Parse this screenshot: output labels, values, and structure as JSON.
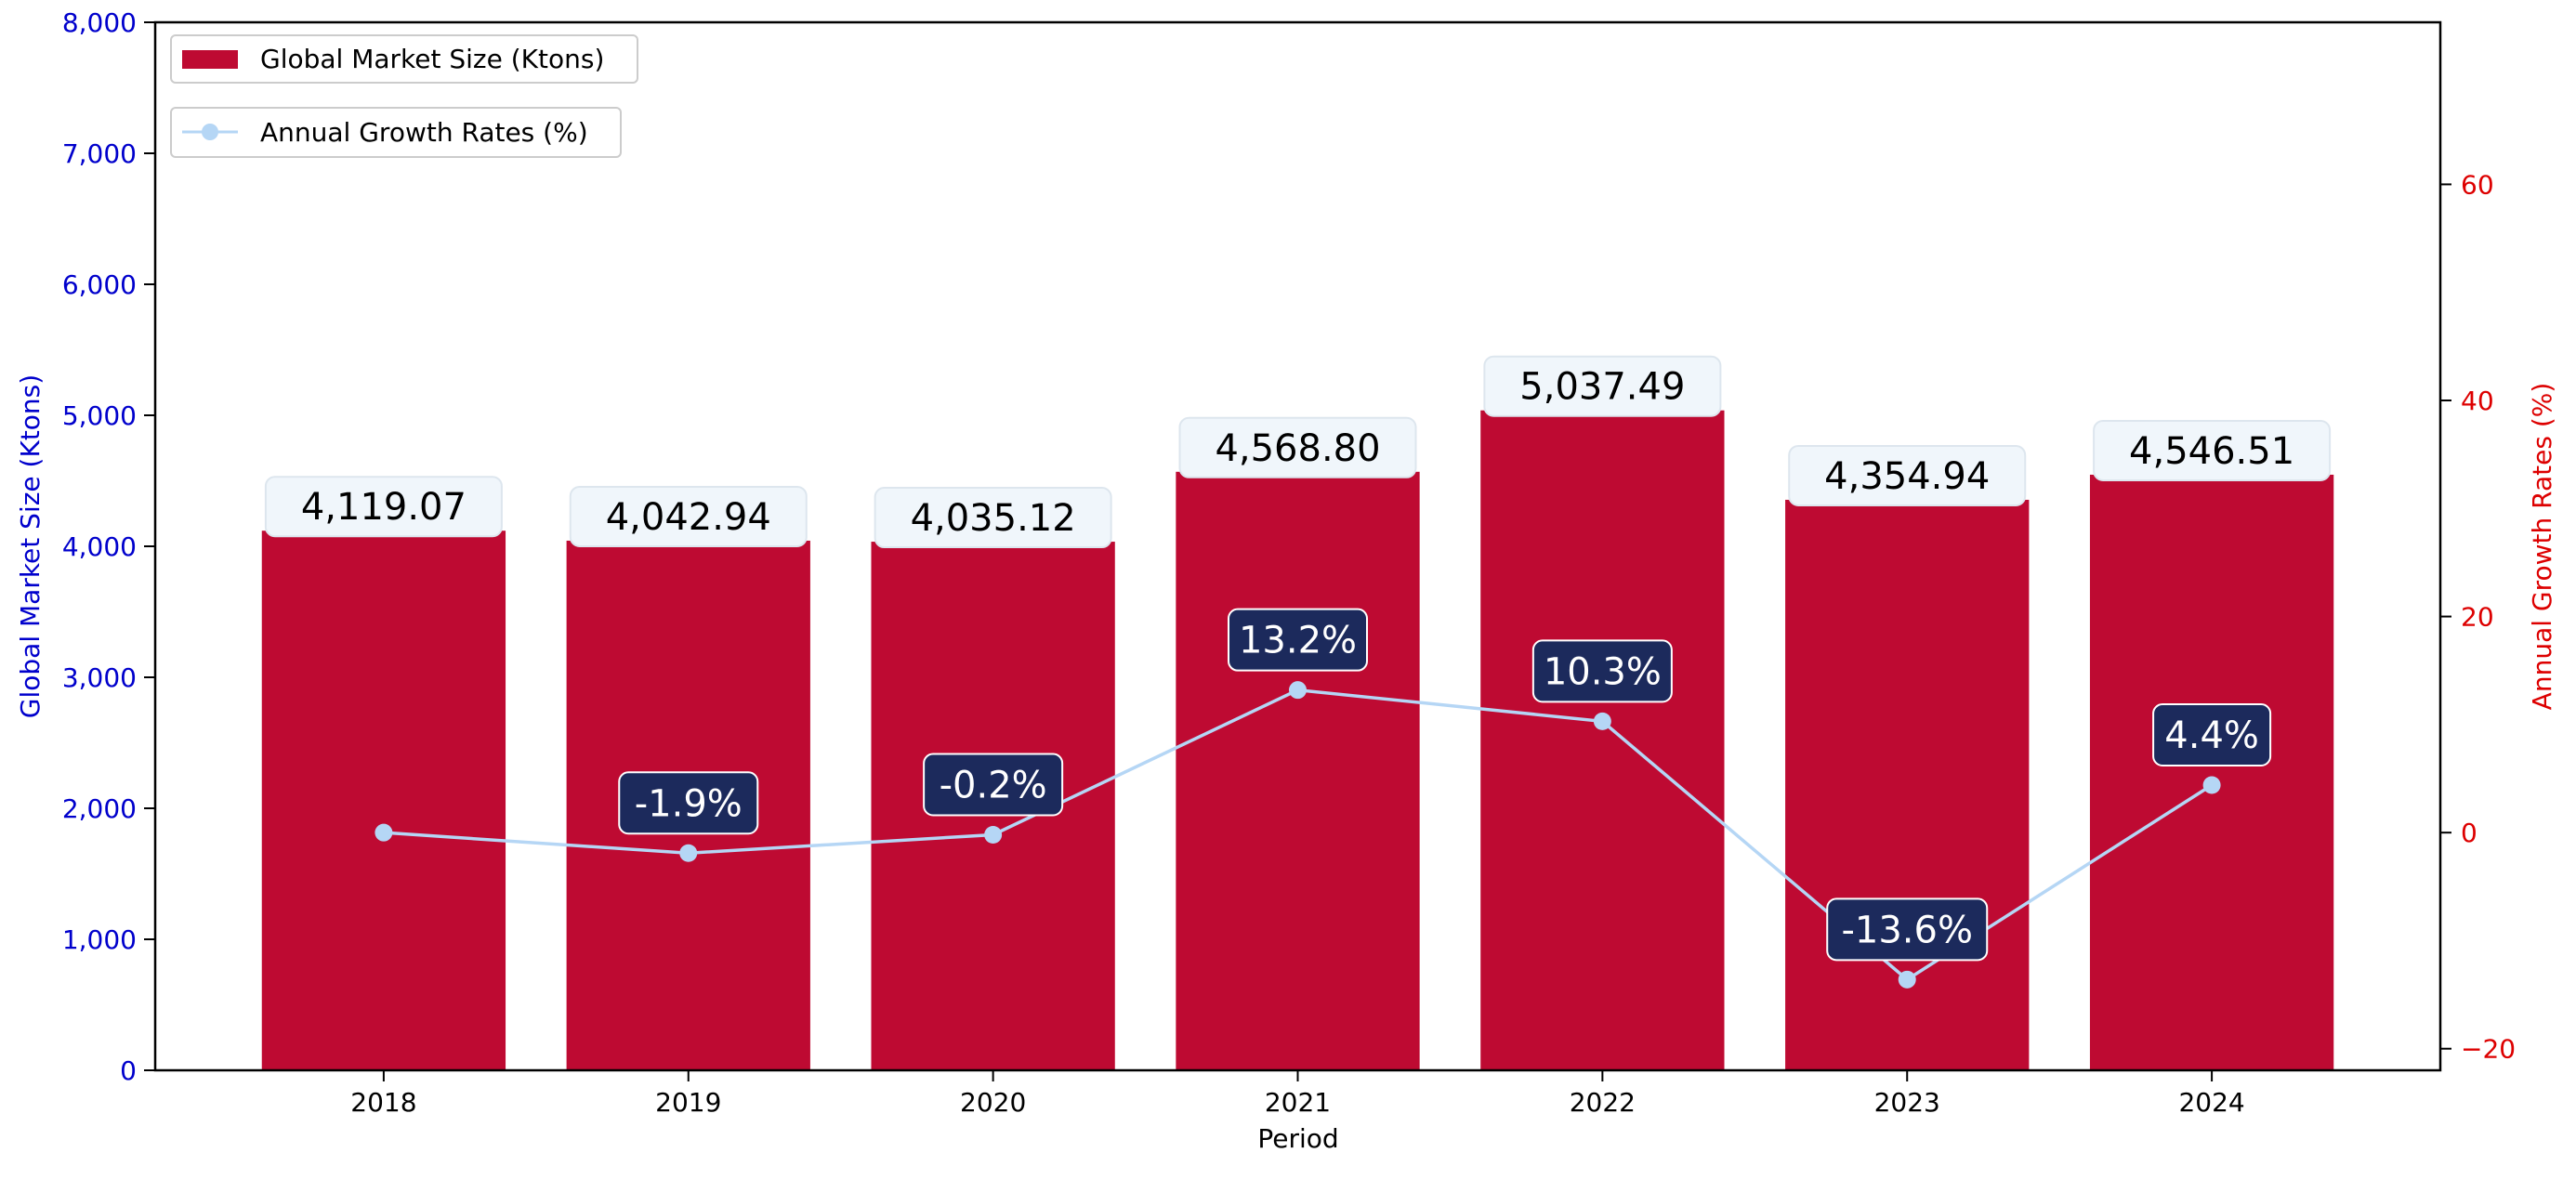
{
  "chart_data": {
    "type": "bar",
    "title": "",
    "xlabel": "Period",
    "ylabel": "Global Market Size (Ktons)",
    "y2label": "Annual Growth Rates (%)",
    "categories": [
      "2018",
      "2019",
      "2020",
      "2021",
      "2022",
      "2023",
      "2024"
    ],
    "ylim": [
      0,
      8000
    ],
    "y2lim": [
      -22,
      75
    ],
    "yticks": [
      0,
      1000,
      2000,
      3000,
      4000,
      5000,
      6000,
      7000,
      8000
    ],
    "ytick_labels": [
      "0",
      "1,000",
      "2,000",
      "3,000",
      "4,000",
      "5,000",
      "6,000",
      "7,000",
      "8,000"
    ],
    "y2ticks": [
      -20,
      0,
      20,
      40,
      60
    ],
    "y2tick_labels": [
      "−20",
      "0",
      "20",
      "40",
      "60"
    ],
    "series": [
      {
        "name": "Global Market Size (Ktons)",
        "type": "bar",
        "axis": "left",
        "color": "#be0a32",
        "values": [
          4119.07,
          4042.94,
          4035.12,
          4568.8,
          5037.49,
          4354.94,
          4546.51
        ],
        "labels": [
          "4,119.07",
          "4,042.94",
          "4,035.12",
          "4,568.80",
          "5,037.49",
          "4,354.94",
          "4,546.51"
        ]
      },
      {
        "name": "Annual Growth Rates (%)",
        "type": "line",
        "axis": "right",
        "color": "#b5d6f5",
        "values": [
          0,
          -1.9,
          -0.2,
          13.2,
          10.3,
          -13.6,
          4.4
        ],
        "labels": [
          "",
          "-1.9%",
          "-0.2%",
          "13.2%",
          "10.3%",
          "-13.6%",
          "4.4%"
        ]
      }
    ],
    "legend": {
      "placement": "top-left",
      "bar_entry": "Global Market Size (Ktons)",
      "line_entry": "Annual Growth Rates (%)"
    },
    "colors": {
      "bar": "#be0a32",
      "line": "#b5d6f5",
      "bar_label_bg": "#f0f6fb",
      "growth_label_bg": "#1c2a5c",
      "left_axis": "#0000cc",
      "right_axis": "#dd0000"
    },
    "grid": false
  }
}
